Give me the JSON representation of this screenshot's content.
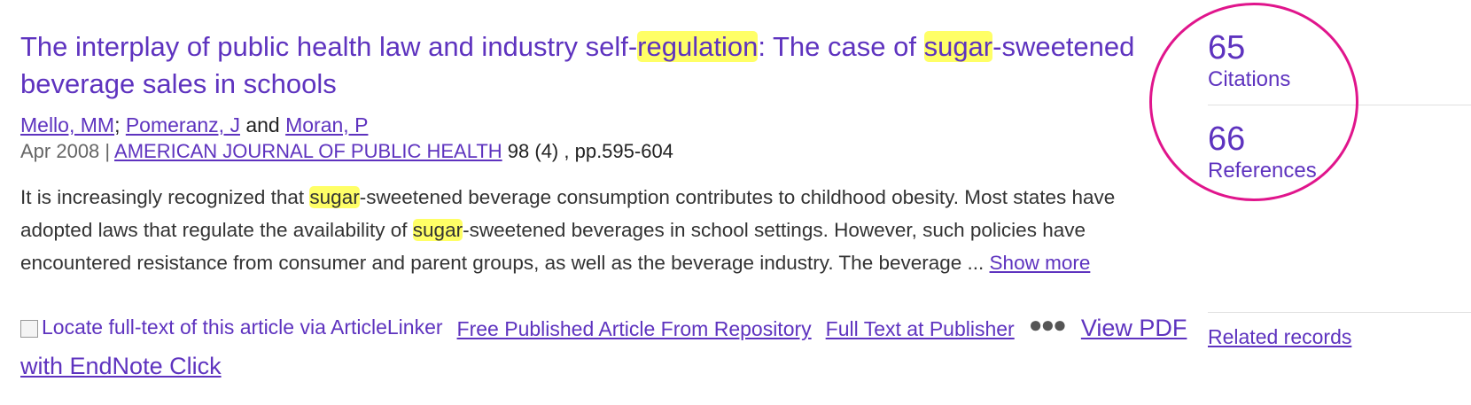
{
  "record": {
    "title": {
      "t1": "The interplay of public health law and industry self-",
      "h1": "regulation",
      "t2": ": The case of ",
      "h2": "sugar",
      "t3": "-sweetened beverage sales in schools"
    },
    "authors": {
      "a1": "Mello, MM",
      "sep1": "; ",
      "a2": "Pomeranz, J",
      "sep2": " and ",
      "a3": "Moran, P"
    },
    "meta": {
      "date": "Apr 2008",
      "sep": " | ",
      "journal": "AMERICAN JOURNAL OF PUBLIC HEALTH",
      "volume": " 98 (4) , pp.595-604"
    },
    "abstract": {
      "l1a": "It is increasingly recognized that ",
      "l1h": "sugar",
      "l1b": "-sweetened beverage consumption contributes to childhood obesity. Most states have",
      "l2a": "adopted laws that regulate the availability of ",
      "l2h": "sugar",
      "l2b": "-sweetened beverages in school settings. However, such policies have",
      "l3": "encountered resistance from consumer and parent groups, as well as the beverage industry. The beverage",
      "ellipsis": " ... ",
      "show_more": "Show more"
    },
    "links": {
      "articlelinker_alt": "Locate full-text of this article via ArticleLinker",
      "free_published": "Free Published Article From Repository",
      "full_text": "Full Text at Publisher",
      "more_icon": "more-horizontal-icon",
      "view_pdf": "View PDF with EndNote Click"
    }
  },
  "sidebar": {
    "citations_count": "65",
    "citations_label": "Citations",
    "references_count": "66",
    "references_label": "References",
    "related": "Related records"
  },
  "colors": {
    "link": "#5e33bf",
    "highlight": "#ffff66",
    "annotation_circle": "#e0158c"
  }
}
